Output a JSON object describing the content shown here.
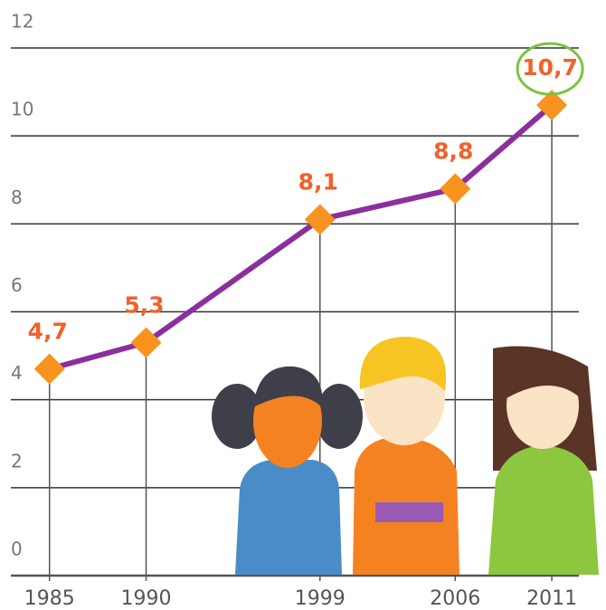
{
  "chart_data": {
    "type": "line",
    "x": [
      1985,
      1990,
      1999,
      2006,
      2011
    ],
    "series": [
      {
        "color": "#8b2f9e",
        "marker_color": "#f7931e",
        "values": [
          4.7,
          5.3,
          8.1,
          8.8,
          10.7
        ],
        "value_labels": [
          "4,7",
          "5,3",
          "8,1",
          "8,8",
          "10,7"
        ]
      }
    ],
    "xlim": [
      1983,
      2012.4
    ],
    "xticks": [
      1985,
      1990,
      1999,
      2006,
      2011
    ],
    "ylim": [
      0,
      12
    ],
    "yticks": [
      0,
      2,
      4,
      6,
      8,
      10,
      12
    ],
    "grid": true,
    "highlight": 4,
    "highlight_color": "#7dc242",
    "label_color": "#f0622a"
  }
}
